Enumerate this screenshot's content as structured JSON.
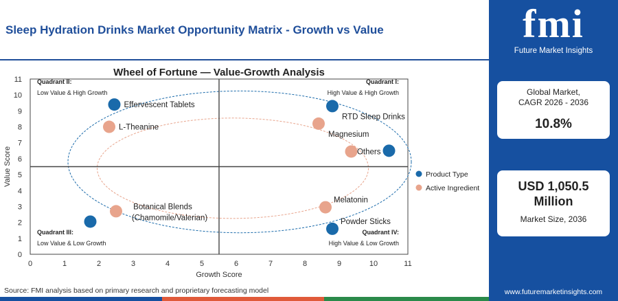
{
  "page": {
    "title": "Sleep Hydration Drinks Market Opportunity Matrix - Growth vs Value",
    "source": "Source: FMI analysis based on primary research and proprietary forecasting model"
  },
  "sidebar": {
    "logo_text": "fmi",
    "logo_tagline": "Future Market Insights",
    "cagr_label": "Global Market, CAGR 2026 - 2036",
    "cagr_value": "10.8%",
    "size_value": "USD 1,050.5 Million",
    "size_label": "Market Size, 2036",
    "website": "www.futuremarketinsights.com"
  },
  "colors": {
    "brand_blue": "#1650a0",
    "title_blue": "#1f4e9a",
    "product_dot": "#1a6aaa",
    "ingredient_dot": "#e8a48c",
    "footer": [
      "#1650a0",
      "#e05a3a",
      "#2a8a4a"
    ]
  },
  "chart_data": {
    "type": "scatter",
    "title": "Wheel of Fortune — Value-Growth Analysis",
    "xlabel": "Growth Score",
    "ylabel": "Value Score",
    "xlim": [
      0,
      11
    ],
    "ylim": [
      0,
      11
    ],
    "xticks": [
      "0",
      "1",
      "2",
      "3",
      "4",
      "5",
      "6",
      "7",
      "8",
      "9",
      "10",
      "11"
    ],
    "yticks": [
      "0",
      "1",
      "2",
      "3",
      "4",
      "5",
      "6",
      "7",
      "8",
      "9",
      "10",
      "11"
    ],
    "divider": {
      "x": 5.5,
      "y": 5.5
    },
    "legend_position": "right",
    "quadrants": [
      {
        "id": "q2",
        "title": "Quadrant II:",
        "desc": "Low Value & High Growth",
        "position": "top-left"
      },
      {
        "id": "q1",
        "title": "Quadrant I:",
        "desc": "High Value & High Growth",
        "position": "top-right"
      },
      {
        "id": "q3",
        "title": "Quadrant III:",
        "desc": "Low Value & Low Growth",
        "position": "bottom-left"
      },
      {
        "id": "q4",
        "title": "Quadrant IV:",
        "desc": "High Value & Low Growth",
        "position": "bottom-right"
      }
    ],
    "series": [
      {
        "name": "Product Type",
        "color": "#1a6aaa",
        "points": [
          {
            "label": "Effervescent Tablets",
            "x": 2.45,
            "y": 9.4,
            "label_side": "right"
          },
          {
            "label": "RTD Sleep Drinks",
            "x": 8.8,
            "y": 9.3,
            "label_side": "below-right"
          },
          {
            "label": "Others",
            "x": 10.45,
            "y": 6.5,
            "label_side": "left"
          },
          {
            "label": "Powder Sticks",
            "x": 8.8,
            "y": 1.6,
            "label_side": "above-right"
          },
          {
            "label": "",
            "x": 1.75,
            "y": 2.05,
            "label_side": "none"
          }
        ]
      },
      {
        "name": "Active Ingredient",
        "color": "#e8a48c",
        "points": [
          {
            "label": "L-Theanine",
            "x": 2.3,
            "y": 8.0,
            "label_side": "right"
          },
          {
            "label": "Magnesium",
            "x": 8.4,
            "y": 8.2,
            "label_side": "below-right"
          },
          {
            "label": "",
            "x": 9.35,
            "y": 6.45,
            "label_side": "none"
          },
          {
            "label": "Melatonin",
            "x": 8.6,
            "y": 2.95,
            "label_side": "above-right"
          },
          {
            "label": "Botanical Blends (Chamomile/Valerian)",
            "x": 2.5,
            "y": 2.7,
            "label_side": "above-right"
          }
        ]
      }
    ],
    "ellipses": [
      {
        "series": "Product Type",
        "cx": 6.1,
        "cy": 5.8,
        "rx": 5.0,
        "ry": 4.45
      },
      {
        "series": "Active Ingredient",
        "cx": 5.9,
        "cy": 5.4,
        "rx": 3.95,
        "ry": 3.15
      }
    ]
  }
}
